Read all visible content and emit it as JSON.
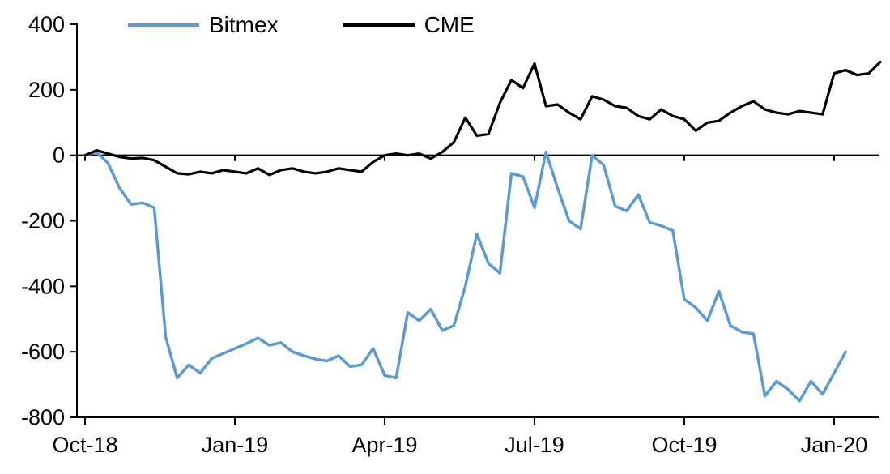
{
  "chart_data": {
    "type": "line",
    "title": "",
    "xlabel": "",
    "ylabel": "",
    "grid": false,
    "legend_position": "top",
    "ylim": [
      -800,
      400
    ],
    "y_ticks": [
      400,
      200,
      0,
      -200,
      -400,
      -600,
      -800
    ],
    "x_tick_labels": [
      "Oct-18",
      "Jan-19",
      "Apr-19",
      "Jul-19",
      "Oct-19",
      "Jan-20"
    ],
    "x_tick_positions": [
      0,
      13,
      26,
      39,
      52,
      65
    ],
    "axis_color": "#000000",
    "series": [
      {
        "name": "Bitmex",
        "color": "#5B9BD5",
        "values": [
          0,
          10,
          -25,
          -100,
          -150,
          -145,
          -160,
          -555,
          -680,
          -640,
          -665,
          -620,
          -605,
          -590,
          -575,
          -558,
          -580,
          -572,
          -600,
          -612,
          -622,
          -628,
          -612,
          -645,
          -640,
          -590,
          -672,
          -680,
          -480,
          -505,
          -470,
          -535,
          -520,
          -400,
          -240,
          -330,
          -360,
          -55,
          -65,
          -160,
          10,
          -100,
          -200,
          -225,
          0,
          -30,
          -155,
          -170,
          -120,
          -205,
          -215,
          -230,
          -440,
          -465,
          -505,
          -415,
          -520,
          -540,
          -545,
          -735,
          -690,
          -715,
          -750,
          -690,
          -730,
          -665,
          -600
        ]
      },
      {
        "name": "CME",
        "color": "#000000",
        "values": [
          0,
          15,
          5,
          -5,
          -10,
          -8,
          -15,
          -35,
          -55,
          -58,
          -50,
          -55,
          -45,
          -50,
          -55,
          -40,
          -60,
          -45,
          -40,
          -50,
          -55,
          -50,
          -40,
          -45,
          -50,
          -20,
          0,
          5,
          0,
          5,
          -10,
          10,
          40,
          115,
          60,
          65,
          160,
          230,
          205,
          280,
          150,
          155,
          130,
          110,
          180,
          170,
          150,
          145,
          120,
          110,
          140,
          120,
          110,
          75,
          100,
          105,
          130,
          150,
          165,
          140,
          130,
          125,
          135,
          130,
          125,
          250,
          260,
          245,
          250,
          285
        ]
      }
    ]
  }
}
